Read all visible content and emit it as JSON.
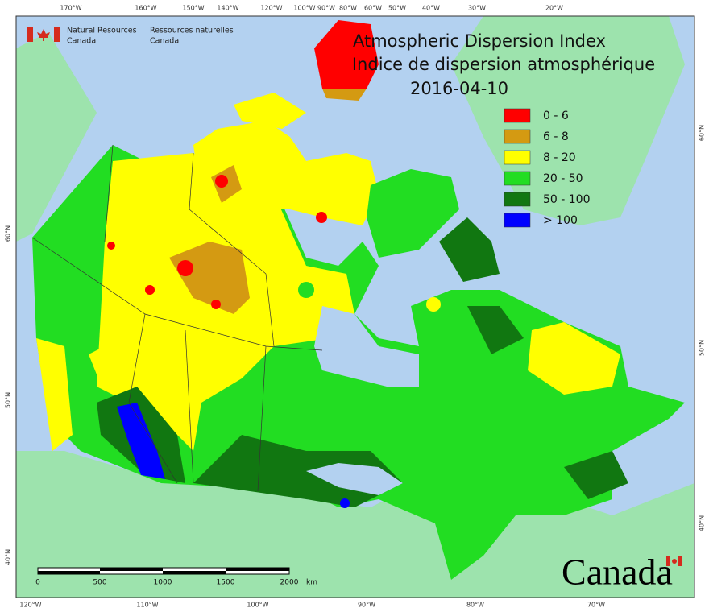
{
  "agency": {
    "en": [
      "Natural Resources",
      "Canada"
    ],
    "fr": [
      "Ressources naturelles",
      "Canada"
    ]
  },
  "title": [
    "Atmospheric Dispersion Index",
    "Indice de dispersion atmosphérique",
    "2016-04-10"
  ],
  "legend": [
    {
      "label": "0 - 6",
      "color": "#ff0000"
    },
    {
      "label": "6 - 8",
      "color": "#d49a12"
    },
    {
      "label": "8 - 20",
      "color": "#ffff00"
    },
    {
      "label": "20 - 50",
      "color": "#22dd22"
    },
    {
      "label": "50 - 100",
      "color": "#117711"
    },
    {
      "label": "> 100",
      "color": "#0000ff"
    }
  ],
  "graticule": {
    "top": [
      "170°W",
      "160°W",
      "150°W",
      "140°W",
      "120°W",
      "100°W",
      "90°W",
      "80°W",
      "60°W",
      "50°W",
      "40°W",
      "30°W",
      "20°W"
    ],
    "bottom": [
      "120°W",
      "110°W",
      "100°W",
      "90°W",
      "80°W",
      "70°W"
    ],
    "left": [
      "60°N",
      "50°N",
      "40°N"
    ],
    "right": [
      "60°N",
      "50°N",
      "40°N"
    ]
  },
  "scale_bar": {
    "labels": [
      "0",
      "500",
      "1000",
      "1500",
      "2000"
    ],
    "unit": "km"
  },
  "wordmark": "Canada"
}
